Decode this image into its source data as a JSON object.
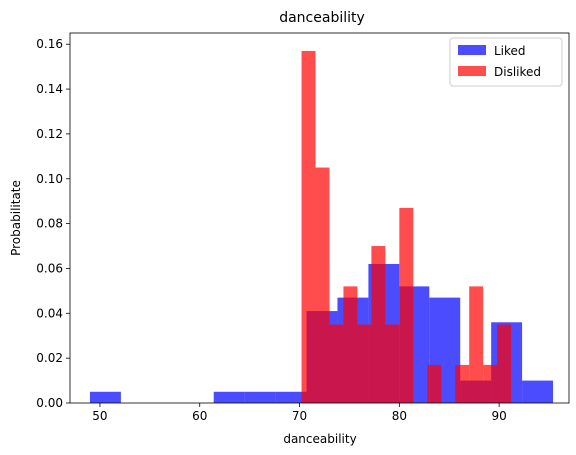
{
  "chart_data": {
    "type": "bar",
    "title": "danceability",
    "xlabel": "danceability",
    "ylabel": "Probabilitate",
    "xlim": [
      47,
      97
    ],
    "ylim": [
      0,
      0.165
    ],
    "xticks": [
      50,
      60,
      70,
      80,
      90
    ],
    "yticks": [
      0.0,
      0.02,
      0.04,
      0.06,
      0.08,
      0.1,
      0.12,
      0.14,
      0.16
    ],
    "ytick_labels": [
      "0.00",
      "0.02",
      "0.04",
      "0.06",
      "0.08",
      "0.10",
      "0.12",
      "0.14",
      "0.16"
    ],
    "grid": false,
    "legend_position": "top-right",
    "series": [
      {
        "name": "Liked",
        "color": "#0000ff",
        "opacity": 0.7,
        "bins": [
          {
            "x0": 49.0,
            "x1": 52.1,
            "value": 0.005
          },
          {
            "x0": 61.4,
            "x1": 64.5,
            "value": 0.005
          },
          {
            "x0": 64.5,
            "x1": 67.6,
            "value": 0.005
          },
          {
            "x0": 67.6,
            "x1": 70.7,
            "value": 0.005
          },
          {
            "x0": 70.7,
            "x1": 73.8,
            "value": 0.041
          },
          {
            "x0": 73.8,
            "x1": 76.9,
            "value": 0.047
          },
          {
            "x0": 76.9,
            "x1": 80.0,
            "value": 0.062
          },
          {
            "x0": 80.0,
            "x1": 83.0,
            "value": 0.052
          },
          {
            "x0": 83.0,
            "x1": 86.1,
            "value": 0.047
          },
          {
            "x0": 86.1,
            "x1": 89.2,
            "value": 0.01
          },
          {
            "x0": 89.2,
            "x1": 92.3,
            "value": 0.036
          },
          {
            "x0": 92.3,
            "x1": 95.4,
            "value": 0.01
          }
        ]
      },
      {
        "name": "Disliked",
        "color": "#ff0000",
        "opacity": 0.7,
        "bins": [
          {
            "x0": 70.2,
            "x1": 71.6,
            "value": 0.157
          },
          {
            "x0": 71.6,
            "x1": 73.0,
            "value": 0.105
          },
          {
            "x0": 73.0,
            "x1": 74.4,
            "value": 0.035
          },
          {
            "x0": 74.4,
            "x1": 75.8,
            "value": 0.052
          },
          {
            "x0": 75.8,
            "x1": 77.2,
            "value": 0.035
          },
          {
            "x0": 77.2,
            "x1": 78.6,
            "value": 0.07
          },
          {
            "x0": 78.6,
            "x1": 80.0,
            "value": 0.035
          },
          {
            "x0": 80.0,
            "x1": 81.4,
            "value": 0.087
          },
          {
            "x0": 82.8,
            "x1": 84.2,
            "value": 0.017
          },
          {
            "x0": 85.6,
            "x1": 87.0,
            "value": 0.017
          },
          {
            "x0": 87.0,
            "x1": 88.4,
            "value": 0.052
          },
          {
            "x0": 88.4,
            "x1": 89.8,
            "value": 0.017
          },
          {
            "x0": 89.8,
            "x1": 91.2,
            "value": 0.035
          }
        ]
      }
    ]
  }
}
